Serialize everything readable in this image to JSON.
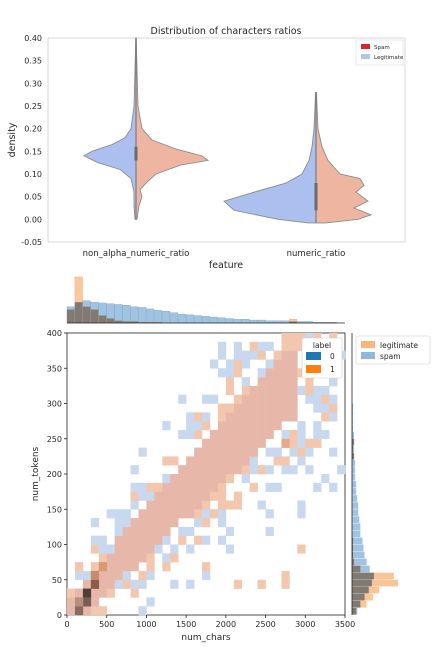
{
  "chart_data": [
    {
      "type": "violin",
      "title": "Distribution of characters ratios",
      "xlabel": "feature",
      "ylabel": "density",
      "categories": [
        "non_alpha_numeric_ratio",
        "numeric_ratio"
      ],
      "ylim": [
        -0.05,
        0.4
      ],
      "yticks": [
        "0.40",
        "0.35",
        "0.30",
        "0.25",
        "0.20",
        "0.15",
        "0.10",
        "0.05",
        "0.00",
        "-0.05"
      ],
      "legend": {
        "placement": "top-right",
        "entries": [
          {
            "name": "Spam",
            "color": "#d62728"
          },
          {
            "name": "Legitimate",
            "color": "#aec7e8"
          }
        ]
      },
      "series": [
        {
          "name": "Spam",
          "side": "left",
          "color": "#abc0ef"
        },
        {
          "name": "Legitimate",
          "side": "right",
          "color": "#eeb6a0"
        }
      ]
    },
    {
      "type": "heatmap",
      "xlabel": "num_chars",
      "ylabel": "num_tokens",
      "xlim": [
        0,
        3500
      ],
      "ylim": [
        0,
        400
      ],
      "xticks": [
        "0",
        "500",
        "1000",
        "1500",
        "2000",
        "2500",
        "3000",
        "3500"
      ],
      "yticks": [
        "400",
        "350",
        "300",
        "250",
        "200",
        "150",
        "100",
        "50",
        "0"
      ],
      "hue_legend": {
        "title": "label",
        "placement": "top-right",
        "entries": [
          {
            "name": "0",
            "color": "#1f77b4"
          },
          {
            "name": "1",
            "color": "#ff7f0e"
          }
        ]
      },
      "marginal_legend": {
        "placement": "top-right",
        "entries": [
          {
            "name": "legitimate",
            "color": "#f7b67c"
          },
          {
            "name": "spam",
            "color": "#8fb9dc"
          }
        ]
      },
      "colors": {
        "spam": "#c8d9ef",
        "legit": "#f3c7ad",
        "dense": "#e7b8aa",
        "darkest": "#4f3e36"
      },
      "marginal_x": {
        "bin_edges_start": 0,
        "bin_width": 100,
        "legitimate": [
          18,
          62,
          22,
          18,
          10,
          6,
          3,
          2,
          2,
          1,
          1,
          1,
          0,
          0,
          0,
          0,
          0,
          0,
          0,
          0,
          0,
          0,
          0,
          0,
          0,
          0,
          0,
          0,
          5,
          0,
          0,
          0,
          0,
          0
        ],
        "spam": [
          22,
          28,
          30,
          28,
          27,
          26,
          25,
          24,
          22,
          21,
          19,
          17,
          16,
          14,
          12,
          11,
          10,
          9,
          8,
          7,
          6,
          5,
          5,
          4,
          4,
          3,
          3,
          3,
          2,
          2,
          2,
          1,
          1,
          1
        ]
      },
      "marginal_y": {
        "bin_width": 10,
        "legitimate": [
          4,
          14,
          20,
          26,
          44,
          40,
          8,
          2,
          1,
          1,
          1,
          0,
          0,
          0,
          0,
          0,
          0,
          0,
          0,
          0,
          0,
          0,
          2,
          1,
          2,
          0,
          0,
          0,
          0,
          0
        ],
        "spam": [
          5,
          8,
          12,
          16,
          19,
          21,
          17,
          14,
          12,
          11,
          10,
          8,
          8,
          7,
          6,
          6,
          5,
          4,
          4,
          3,
          3,
          3,
          2,
          2,
          2,
          2,
          1,
          1,
          1,
          1
        ]
      }
    }
  ]
}
